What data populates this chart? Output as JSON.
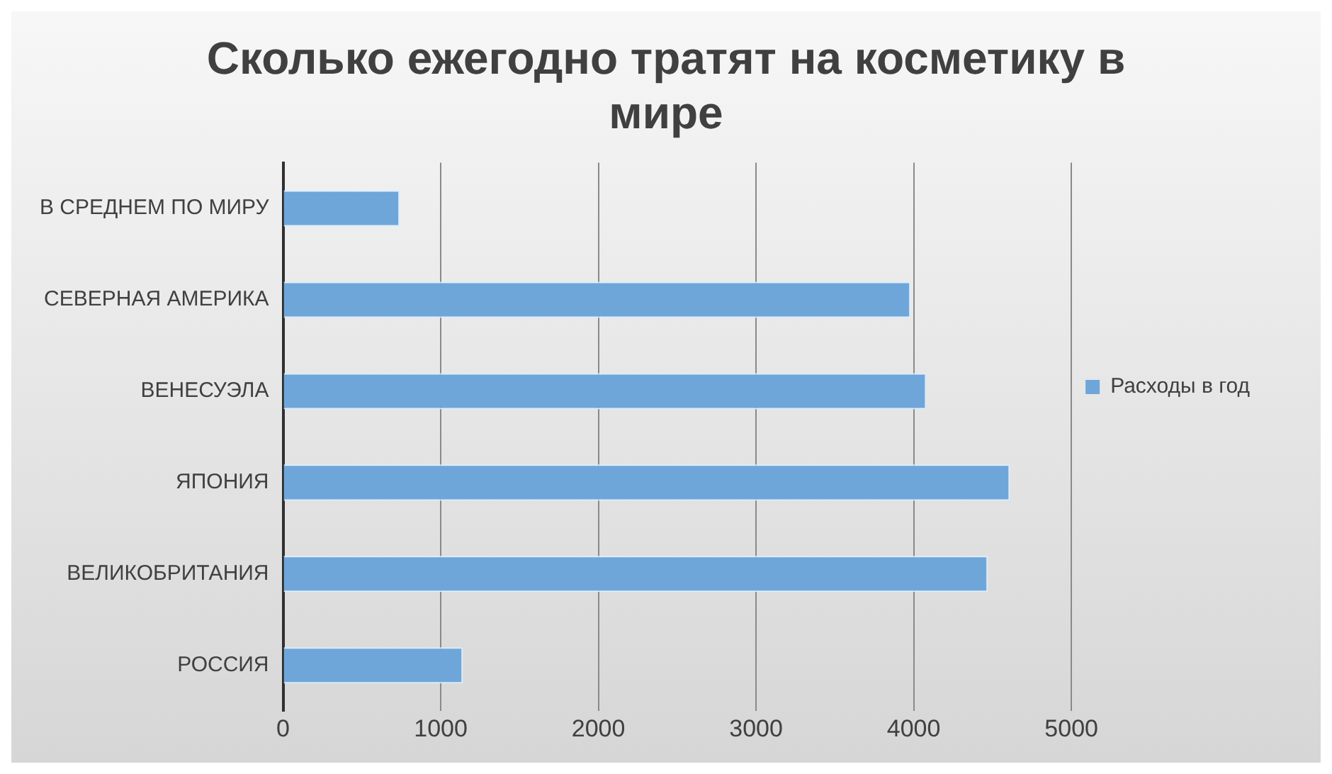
{
  "chart_data": {
    "type": "bar",
    "orientation": "horizontal",
    "title": "Сколько ежегодно тратят на косметику в мире",
    "categories": [
      "В СРЕДНЕМ ПО МИРУ",
      "СЕВЕРНАЯ АМЕРИКА",
      "ВЕНЕСУЭЛА",
      "ЯПОНИЯ",
      "ВЕЛИКОБРИТАНИЯ",
      "РОССИЯ"
    ],
    "series": [
      {
        "name": "Расходы в год",
        "color": "#6fa6d9",
        "values": [
          740,
          3980,
          4080,
          4610,
          4470,
          1140
        ]
      }
    ],
    "xlim": [
      0,
      5000
    ],
    "xticks": [
      0,
      1000,
      2000,
      3000,
      4000,
      5000
    ],
    "grid": "x",
    "legend": "right"
  }
}
